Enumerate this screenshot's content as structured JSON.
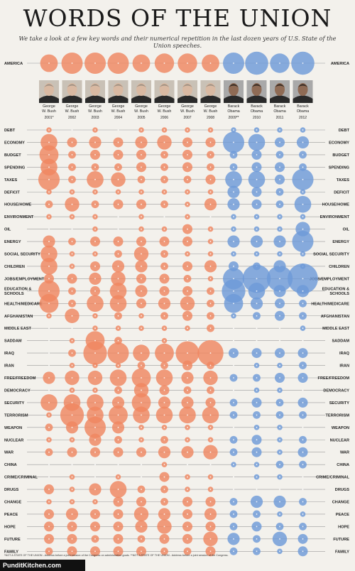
{
  "title": "WORDS OF THE UNION",
  "subtitle": "We take a look at a few key words and their numerical repetition in the last dozen years of U.S. State of the Union speeches.",
  "footnote": "*NOT A STATE OF THE UNION - Address before a joint session of the Congress on administration goals. **NOT A STATE OF THE UNION - Address before a joint session of the Congress.",
  "brand": "PunditKitchen.com",
  "colors": {
    "bush": "#ef8660",
    "obama": "#6e9ad8",
    "line": "#9a9a9a"
  },
  "chart_data": {
    "type": "bubble-matrix",
    "presidents": [
      {
        "name": "George W. Bush",
        "year": "2001*",
        "party": "bush"
      },
      {
        "name": "George W. Bush",
        "year": "2002",
        "party": "bush"
      },
      {
        "name": "George W. Bush",
        "year": "2003",
        "party": "bush"
      },
      {
        "name": "George W. Bush",
        "year": "2004",
        "party": "bush"
      },
      {
        "name": "George W. Bush",
        "year": "2005",
        "party": "bush"
      },
      {
        "name": "George W. Bush",
        "year": "2006",
        "party": "bush"
      },
      {
        "name": "George W. Bush",
        "year": "2007",
        "party": "bush"
      },
      {
        "name": "George W. Bush",
        "year": "2008",
        "party": "bush"
      },
      {
        "name": "Barack Obama",
        "year": "2009**",
        "party": "obama"
      },
      {
        "name": "Barack Obama",
        "year": "2010",
        "party": "obama"
      },
      {
        "name": "Barack Obama",
        "year": "2011",
        "party": "obama"
      },
      {
        "name": "Barack Obama",
        "year": "2012",
        "party": "obama"
      }
    ],
    "words": [
      {
        "word": "AMERICA",
        "values": [
          8,
          10,
          10,
          10,
          8,
          9,
          9,
          8,
          10,
          11,
          9,
          11
        ]
      },
      {
        "word": "DEBT",
        "values": [
          1,
          0,
          1,
          0,
          1,
          1,
          1,
          1,
          1,
          1,
          1,
          1
        ]
      },
      {
        "word": "ECONOMY",
        "values": [
          6,
          3,
          4,
          3,
          4,
          5,
          3,
          3,
          8,
          6,
          3,
          4
        ]
      },
      {
        "word": "BUDGET",
        "values": [
          7,
          2,
          3,
          3,
          3,
          2,
          3,
          2,
          2,
          3,
          2,
          2
        ]
      },
      {
        "word": "SPENDING",
        "values": [
          6,
          2,
          2,
          2,
          3,
          2,
          3,
          2,
          2,
          3,
          3,
          2
        ]
      },
      {
        "word": "TAXES",
        "values": [
          8,
          2,
          6,
          5,
          2,
          2,
          2,
          3,
          6,
          6,
          3,
          8
        ]
      },
      {
        "word": "DEFICIT",
        "values": [
          1,
          1,
          1,
          1,
          1,
          1,
          1,
          1,
          4,
          3,
          2,
          1
        ]
      },
      {
        "word": "HOUSE/HOME",
        "values": [
          2,
          5,
          2,
          3,
          3,
          2,
          1,
          4,
          4,
          3,
          2,
          6
        ]
      },
      {
        "word": "ENVIRONMENT",
        "values": [
          1,
          1,
          1,
          0,
          1,
          0,
          1,
          0,
          1,
          1,
          1,
          1
        ]
      },
      {
        "word": "OIL",
        "values": [
          0,
          0,
          1,
          0,
          1,
          1,
          3,
          1,
          1,
          1,
          1,
          5
        ]
      },
      {
        "word": "ENERGY",
        "values": [
          4,
          2,
          3,
          3,
          3,
          3,
          3,
          1,
          4,
          4,
          4,
          8
        ]
      },
      {
        "word": "SOCIAL SECURITY",
        "values": [
          6,
          1,
          1,
          2,
          5,
          2,
          1,
          1,
          1,
          1,
          1,
          1
        ]
      },
      {
        "word": "CHILDREN",
        "values": [
          6,
          1,
          3,
          4,
          4,
          2,
          3,
          4,
          3,
          2,
          4,
          1
        ]
      },
      {
        "word": "JOBS/EMPLOYMENT",
        "values": [
          3,
          3,
          4,
          5,
          3,
          3,
          2,
          1,
          8,
          11,
          10,
          12
        ]
      },
      {
        "word": "EDUCATION & SCHOOLS",
        "values": [
          8,
          2,
          3,
          6,
          4,
          3,
          3,
          2,
          9,
          6,
          4,
          4
        ]
      },
      {
        "word": "HEALTH/MEDICARE",
        "values": [
          7,
          2,
          6,
          6,
          3,
          4,
          5,
          2,
          7,
          4,
          3,
          2
        ]
      },
      {
        "word": "AFGHANISTAN",
        "values": [
          1,
          5,
          1,
          2,
          1,
          2,
          3,
          2,
          1,
          2,
          3,
          2
        ]
      },
      {
        "word": "MIDDLE EAST",
        "values": [
          0,
          0,
          1,
          1,
          1,
          1,
          1,
          2,
          0,
          0,
          0,
          1
        ]
      },
      {
        "word": "SADDAM",
        "values": [
          0,
          1,
          7,
          2,
          0,
          1,
          0,
          0,
          0,
          0,
          0,
          0
        ]
      },
      {
        "word": "IRAQ",
        "values": [
          0,
          2,
          9,
          8,
          6,
          7,
          9,
          10,
          3,
          3,
          3,
          3
        ]
      },
      {
        "word": "IRAN",
        "values": [
          0,
          1,
          1,
          1,
          2,
          2,
          3,
          2,
          0,
          1,
          1,
          2
        ]
      },
      {
        "word": "FREE/FREEDOM",
        "values": [
          4,
          5,
          5,
          6,
          7,
          6,
          4,
          5,
          2,
          2,
          3,
          3
        ]
      },
      {
        "word": "DEMOCRACY",
        "values": [
          0,
          1,
          1,
          2,
          5,
          3,
          2,
          2,
          0,
          1,
          1,
          0
        ]
      },
      {
        "word": "SECURITY",
        "values": [
          6,
          6,
          6,
          4,
          7,
          4,
          4,
          3,
          2,
          3,
          2,
          3
        ]
      },
      {
        "word": "TERRORISM",
        "values": [
          1,
          9,
          6,
          7,
          6,
          6,
          6,
          6,
          2,
          2,
          2,
          2
        ]
      },
      {
        "word": "WEAPON",
        "values": [
          2,
          4,
          8,
          4,
          1,
          1,
          1,
          1,
          0,
          1,
          1,
          0
        ]
      },
      {
        "word": "NUCLEAR",
        "values": [
          1,
          1,
          4,
          2,
          1,
          2,
          1,
          1,
          2,
          3,
          1,
          2
        ]
      },
      {
        "word": "WAR",
        "values": [
          2,
          3,
          3,
          3,
          3,
          4,
          4,
          5,
          2,
          3,
          1,
          3
        ]
      },
      {
        "word": "CHINA",
        "values": [
          0,
          0,
          0,
          0,
          0,
          1,
          0,
          0,
          1,
          1,
          2,
          2
        ]
      },
      {
        "word": "CRIME/CRIMINAL",
        "values": [
          0,
          1,
          0,
          1,
          0,
          3,
          1,
          1,
          0,
          1,
          1,
          0
        ]
      },
      {
        "word": "DRUGS",
        "values": [
          3,
          1,
          4,
          6,
          2,
          2,
          1,
          1,
          0,
          0,
          0,
          0
        ]
      },
      {
        "word": "CHANGE",
        "values": [
          1,
          1,
          1,
          3,
          3,
          2,
          3,
          3,
          2,
          4,
          4,
          2
        ]
      },
      {
        "word": "PEACE",
        "values": [
          3,
          4,
          3,
          3,
          5,
          4,
          3,
          4,
          2,
          2,
          1,
          1
        ]
      },
      {
        "word": "HOPE",
        "values": [
          3,
          3,
          3,
          3,
          4,
          5,
          3,
          3,
          2,
          3,
          2,
          2
        ]
      },
      {
        "word": "FUTURE",
        "values": [
          3,
          3,
          2,
          3,
          2,
          3,
          3,
          5,
          4,
          2,
          5,
          3
        ]
      },
      {
        "word": "FAMILY",
        "values": [
          2,
          3,
          3,
          3,
          3,
          2,
          2,
          3,
          2,
          2,
          1,
          3
        ]
      }
    ]
  }
}
